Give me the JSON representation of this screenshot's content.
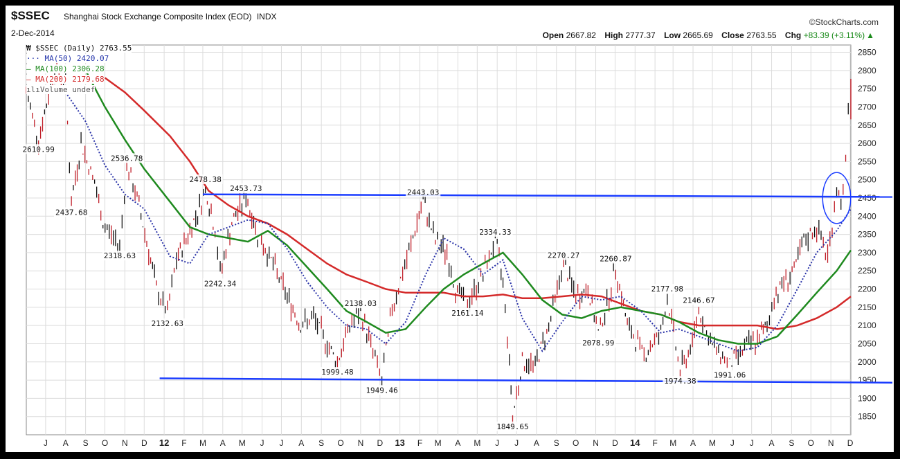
{
  "header": {
    "symbol": "$SSEC",
    "name": "Shanghai Stock Exchange Composite Index (EOD)",
    "exchange": "INDX",
    "date": "2-Dec-2014",
    "source": "©StockCharts.com",
    "open_label": "Open",
    "open": "2667.82",
    "high_label": "High",
    "high": "2777.37",
    "low_label": "Low",
    "low": "2665.69",
    "close_label": "Close",
    "close": "2763.55",
    "chg_label": "Chg",
    "chg": "+83.39 (+3.11%)"
  },
  "legend": [
    {
      "text": "$SSEC (Daily) 2763.55",
      "color": "#000000",
      "icon": "candle-icon"
    },
    {
      "text": "MA(50) 2420.07",
      "color": "#2233aa",
      "icon": "dotted-line-icon"
    },
    {
      "text": "MA(100) 2306.28",
      "color": "#1f8a1f",
      "icon": "line-icon"
    },
    {
      "text": "MA(200) 2179.68",
      "color": "#d42a2a",
      "icon": "line-icon"
    },
    {
      "text": "Volume undef",
      "color": "#555555",
      "icon": "bars-icon"
    }
  ],
  "chart_data": {
    "type": "line",
    "title": "$SSEC Shanghai Stock Exchange Composite Index (EOD)",
    "ylim": [
      1800,
      2870
    ],
    "yticks": [
      1850,
      1900,
      1950,
      2000,
      2050,
      2100,
      2150,
      2200,
      2250,
      2300,
      2350,
      2400,
      2450,
      2500,
      2550,
      2600,
      2650,
      2700,
      2750,
      2800,
      2850
    ],
    "xticks": [
      "J",
      "A",
      "S",
      "O",
      "N",
      "D",
      "12",
      "F",
      "M",
      "A",
      "M",
      "J",
      "J",
      "A",
      "S",
      "O",
      "N",
      "D",
      "13",
      "F",
      "M",
      "A",
      "M",
      "J",
      "J",
      "A",
      "S",
      "O",
      "N",
      "D",
      "14",
      "F",
      "M",
      "A",
      "M",
      "J",
      "J",
      "A",
      "S",
      "O",
      "N",
      "D"
    ],
    "bold_xticks": [
      "12",
      "13",
      "14"
    ],
    "x_start": "2011-06-01",
    "x_end": "2014-12-02",
    "price_series": {
      "name": "$SSEC (Daily)",
      "color": "#c0202a",
      "points": [
        [
          "2011-06-01",
          2740
        ],
        [
          "2011-06-20",
          2610.99
        ],
        [
          "2011-07-15",
          2800
        ],
        [
          "2011-08-01",
          2770
        ],
        [
          "2011-08-10",
          2437.68
        ],
        [
          "2011-08-25",
          2600
        ],
        [
          "2011-09-15",
          2490
        ],
        [
          "2011-09-28",
          2380
        ],
        [
          "2011-10-24",
          2318.63
        ],
        [
          "2011-11-04",
          2536.78
        ],
        [
          "2011-11-20",
          2450
        ],
        [
          "2011-12-05",
          2330
        ],
        [
          "2011-12-20",
          2200
        ],
        [
          "2012-01-06",
          2132.63
        ],
        [
          "2012-01-20",
          2280
        ],
        [
          "2012-02-10",
          2360
        ],
        [
          "2012-02-28",
          2440
        ],
        [
          "2012-03-05",
          2478.38
        ],
        [
          "2012-03-20",
          2360
        ],
        [
          "2012-03-28",
          2242.34
        ],
        [
          "2012-04-15",
          2380
        ],
        [
          "2012-05-07",
          2453.73
        ],
        [
          "2012-05-25",
          2350
        ],
        [
          "2012-06-15",
          2280
        ],
        [
          "2012-07-10",
          2180
        ],
        [
          "2012-07-31",
          2100
        ],
        [
          "2012-08-20",
          2120
        ],
        [
          "2012-09-10",
          2050
        ],
        [
          "2012-09-26",
          1999.48
        ],
        [
          "2012-10-15",
          2100
        ],
        [
          "2012-11-01",
          2138.03
        ],
        [
          "2012-11-20",
          2030
        ],
        [
          "2012-12-04",
          1949.46
        ],
        [
          "2012-12-20",
          2150
        ],
        [
          "2013-01-15",
          2300
        ],
        [
          "2013-02-06",
          2443.03
        ],
        [
          "2013-02-25",
          2330
        ],
        [
          "2013-03-15",
          2300
        ],
        [
          "2013-03-28",
          2200
        ],
        [
          "2013-04-16",
          2161.14
        ],
        [
          "2013-05-10",
          2240
        ],
        [
          "2013-05-29",
          2334.33
        ],
        [
          "2013-06-10",
          2220
        ],
        [
          "2013-06-20",
          2000
        ],
        [
          "2013-06-25",
          1849.65
        ],
        [
          "2013-07-10",
          2000
        ],
        [
          "2013-07-30",
          1990
        ],
        [
          "2013-08-20",
          2100
        ],
        [
          "2013-09-12",
          2270.27
        ],
        [
          "2013-10-01",
          2180
        ],
        [
          "2013-10-20",
          2200
        ],
        [
          "2013-11-05",
          2078.99
        ],
        [
          "2013-11-25",
          2200
        ],
        [
          "2013-12-02",
          2260.87
        ],
        [
          "2013-12-20",
          2100
        ],
        [
          "2014-01-15",
          2020
        ],
        [
          "2014-02-10",
          2080
        ],
        [
          "2014-02-20",
          2177.98
        ],
        [
          "2014-03-12",
          1974.38
        ],
        [
          "2014-03-31",
          2050
        ],
        [
          "2014-04-10",
          2146.67
        ],
        [
          "2014-04-28",
          2050
        ],
        [
          "2014-05-20",
          2010
        ],
        [
          "2014-05-28",
          1991.06
        ],
        [
          "2014-06-20",
          2040
        ],
        [
          "2014-07-10",
          2060
        ],
        [
          "2014-07-25",
          2100
        ],
        [
          "2014-08-05",
          2180
        ],
        [
          "2014-08-20",
          2220
        ],
        [
          "2014-09-05",
          2250
        ],
        [
          "2014-09-20",
          2330
        ],
        [
          "2014-10-10",
          2370
        ],
        [
          "2014-10-27",
          2290
        ],
        [
          "2014-11-10",
          2470
        ],
        [
          "2014-11-20",
          2450
        ],
        [
          "2014-11-24",
          2550
        ],
        [
          "2014-11-28",
          2680
        ],
        [
          "2014-12-02",
          2763.55
        ]
      ]
    },
    "ma50": {
      "name": "MA(50)",
      "color": "#2a33a8",
      "points": [
        [
          "2011-08-01",
          2740
        ],
        [
          "2011-09-01",
          2660
        ],
        [
          "2011-10-01",
          2540
        ],
        [
          "2011-11-01",
          2460
        ],
        [
          "2011-12-01",
          2420
        ],
        [
          "2012-01-10",
          2290
        ],
        [
          "2012-02-10",
          2270
        ],
        [
          "2012-03-10",
          2350
        ],
        [
          "2012-04-10",
          2370
        ],
        [
          "2012-05-10",
          2390
        ],
        [
          "2012-06-10",
          2380
        ],
        [
          "2012-07-10",
          2310
        ],
        [
          "2012-08-10",
          2220
        ],
        [
          "2012-09-10",
          2150
        ],
        [
          "2012-10-10",
          2100
        ],
        [
          "2012-11-10",
          2090
        ],
        [
          "2012-12-10",
          2050
        ],
        [
          "2013-01-10",
          2110
        ],
        [
          "2013-02-10",
          2240
        ],
        [
          "2013-03-10",
          2340
        ],
        [
          "2013-04-10",
          2310
        ],
        [
          "2013-05-10",
          2240
        ],
        [
          "2013-06-10",
          2280
        ],
        [
          "2013-07-10",
          2120
        ],
        [
          "2013-08-10",
          2030
        ],
        [
          "2013-09-10",
          2110
        ],
        [
          "2013-10-10",
          2180
        ],
        [
          "2013-11-10",
          2170
        ],
        [
          "2013-12-10",
          2180
        ],
        [
          "2014-01-10",
          2140
        ],
        [
          "2014-02-10",
          2080
        ],
        [
          "2014-03-10",
          2090
        ],
        [
          "2014-04-10",
          2070
        ],
        [
          "2014-05-10",
          2050
        ],
        [
          "2014-06-10",
          2030
        ],
        [
          "2014-07-10",
          2040
        ],
        [
          "2014-08-10",
          2100
        ],
        [
          "2014-09-10",
          2200
        ],
        [
          "2014-10-10",
          2300
        ],
        [
          "2014-11-10",
          2360
        ],
        [
          "2014-12-02",
          2420.07
        ]
      ]
    },
    "ma100": {
      "name": "MA(100)",
      "color": "#1f8a1f",
      "points": [
        [
          "2011-09-01",
          2800
        ],
        [
          "2011-10-01",
          2700
        ],
        [
          "2011-11-01",
          2610
        ],
        [
          "2011-12-01",
          2530
        ],
        [
          "2012-01-10",
          2440
        ],
        [
          "2012-02-10",
          2370
        ],
        [
          "2012-03-10",
          2350
        ],
        [
          "2012-04-10",
          2340
        ],
        [
          "2012-05-10",
          2330
        ],
        [
          "2012-06-10",
          2360
        ],
        [
          "2012-07-10",
          2320
        ],
        [
          "2012-08-10",
          2260
        ],
        [
          "2012-09-10",
          2200
        ],
        [
          "2012-10-10",
          2140
        ],
        [
          "2012-11-10",
          2110
        ],
        [
          "2012-12-10",
          2080
        ],
        [
          "2013-01-10",
          2090
        ],
        [
          "2013-02-10",
          2150
        ],
        [
          "2013-03-10",
          2200
        ],
        [
          "2013-04-10",
          2240
        ],
        [
          "2013-05-10",
          2270
        ],
        [
          "2013-06-10",
          2300
        ],
        [
          "2013-07-10",
          2240
        ],
        [
          "2013-08-10",
          2170
        ],
        [
          "2013-09-10",
          2130
        ],
        [
          "2013-10-10",
          2120
        ],
        [
          "2013-11-10",
          2140
        ],
        [
          "2013-12-10",
          2150
        ],
        [
          "2014-01-10",
          2140
        ],
        [
          "2014-02-10",
          2130
        ],
        [
          "2014-03-10",
          2110
        ],
        [
          "2014-04-10",
          2080
        ],
        [
          "2014-05-10",
          2060
        ],
        [
          "2014-06-10",
          2050
        ],
        [
          "2014-07-10",
          2050
        ],
        [
          "2014-08-10",
          2070
        ],
        [
          "2014-09-10",
          2130
        ],
        [
          "2014-10-10",
          2190
        ],
        [
          "2014-11-10",
          2250
        ],
        [
          "2014-12-02",
          2306.28
        ]
      ]
    },
    "ma200": {
      "name": "MA(200)",
      "color": "#d42a2a",
      "points": [
        [
          "2011-10-01",
          2780
        ],
        [
          "2011-11-01",
          2740
        ],
        [
          "2011-12-01",
          2690
        ],
        [
          "2012-01-10",
          2620
        ],
        [
          "2012-02-10",
          2550
        ],
        [
          "2012-03-10",
          2470
        ],
        [
          "2012-04-10",
          2430
        ],
        [
          "2012-05-10",
          2400
        ],
        [
          "2012-06-10",
          2380
        ],
        [
          "2012-07-10",
          2350
        ],
        [
          "2012-08-10",
          2310
        ],
        [
          "2012-09-10",
          2270
        ],
        [
          "2012-10-10",
          2240
        ],
        [
          "2012-11-10",
          2220
        ],
        [
          "2012-12-10",
          2200
        ],
        [
          "2013-01-10",
          2190
        ],
        [
          "2013-02-10",
          2190
        ],
        [
          "2013-03-10",
          2190
        ],
        [
          "2013-04-10",
          2180
        ],
        [
          "2013-05-10",
          2180
        ],
        [
          "2013-06-10",
          2185
        ],
        [
          "2013-07-10",
          2175
        ],
        [
          "2013-08-10",
          2175
        ],
        [
          "2013-09-10",
          2180
        ],
        [
          "2013-10-10",
          2185
        ],
        [
          "2013-11-10",
          2180
        ],
        [
          "2013-12-10",
          2160
        ],
        [
          "2014-01-10",
          2140
        ],
        [
          "2014-02-10",
          2130
        ],
        [
          "2014-03-10",
          2110
        ],
        [
          "2014-04-10",
          2100
        ],
        [
          "2014-05-10",
          2100
        ],
        [
          "2014-06-10",
          2100
        ],
        [
          "2014-07-10",
          2100
        ],
        [
          "2014-08-10",
          2090
        ],
        [
          "2014-09-10",
          2100
        ],
        [
          "2014-10-10",
          2120
        ],
        [
          "2014-11-10",
          2150
        ],
        [
          "2014-12-02",
          2179.68
        ]
      ]
    },
    "annotations": [
      {
        "label": "2610.99",
        "date": "2011-06-20",
        "y": 2610.99,
        "pos": "below"
      },
      {
        "label": "2437.68",
        "date": "2011-08-10",
        "y": 2437.68,
        "pos": "below"
      },
      {
        "label": "2536.78",
        "date": "2011-11-04",
        "y": 2536.78,
        "pos": "above"
      },
      {
        "label": "2318.63",
        "date": "2011-10-24",
        "y": 2318.63,
        "pos": "below"
      },
      {
        "label": "2132.63",
        "date": "2012-01-06",
        "y": 2132.63,
        "pos": "below"
      },
      {
        "label": "2478.38",
        "date": "2012-03-05",
        "y": 2478.38,
        "pos": "above"
      },
      {
        "label": "2453.73",
        "date": "2012-05-07",
        "y": 2453.73,
        "pos": "above"
      },
      {
        "label": "2242.34",
        "date": "2012-03-28",
        "y": 2242.34,
        "pos": "below"
      },
      {
        "label": "2138.03",
        "date": "2012-11-01",
        "y": 2138.03,
        "pos": "above"
      },
      {
        "label": "1999.48",
        "date": "2012-09-26",
        "y": 1999.48,
        "pos": "below"
      },
      {
        "label": "1949.46",
        "date": "2012-12-04",
        "y": 1949.46,
        "pos": "below"
      },
      {
        "label": "2443.03",
        "date": "2013-02-06",
        "y": 2443.03,
        "pos": "above"
      },
      {
        "label": "2161.14",
        "date": "2013-04-16",
        "y": 2161.14,
        "pos": "below"
      },
      {
        "label": "2334.33",
        "date": "2013-05-29",
        "y": 2334.33,
        "pos": "above"
      },
      {
        "label": "1849.65",
        "date": "2013-06-25",
        "y": 1849.65,
        "pos": "below"
      },
      {
        "label": "2270.27",
        "date": "2013-09-12",
        "y": 2270.27,
        "pos": "above"
      },
      {
        "label": "2078.99",
        "date": "2013-11-05",
        "y": 2078.99,
        "pos": "below"
      },
      {
        "label": "2260.87",
        "date": "2013-12-02",
        "y": 2260.87,
        "pos": "above"
      },
      {
        "label": "2177.98",
        "date": "2014-02-20",
        "y": 2177.98,
        "pos": "above"
      },
      {
        "label": "2146.67",
        "date": "2014-04-10",
        "y": 2146.67,
        "pos": "above"
      },
      {
        "label": "1974.38",
        "date": "2014-03-12",
        "y": 1974.38,
        "pos": "below"
      },
      {
        "label": "1991.06",
        "date": "2014-05-28",
        "y": 1991.06,
        "pos": "below"
      }
    ],
    "trendlines": [
      {
        "color": "#1a3cff",
        "from": [
          "2012-03-01",
          2460
        ],
        "to": [
          "2014-12-02",
          2453
        ]
      },
      {
        "color": "#1a3cff",
        "from": [
          "2011-12-25",
          1955
        ],
        "to": [
          "2014-12-02",
          1943
        ]
      }
    ],
    "ellipse": {
      "color": "#1a3cff",
      "center": [
        "2014-11-10",
        2450
      ],
      "ry_units": 70
    },
    "grid": true,
    "legend_position": "top-left"
  }
}
